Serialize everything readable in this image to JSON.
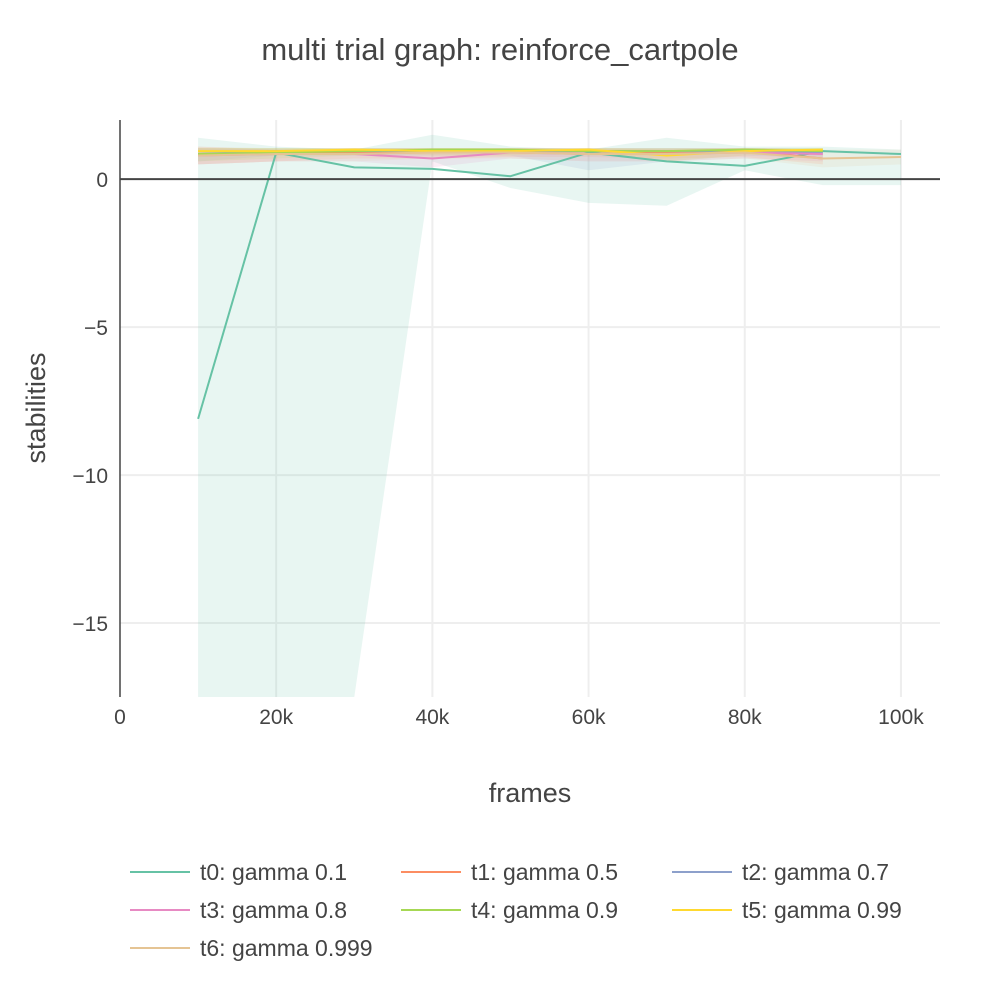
{
  "chart_data": {
    "type": "line",
    "title": "multi trial graph: reinforce_cartpole",
    "xlabel": "frames",
    "ylabel": "stabilities",
    "xlim": [
      0,
      105000
    ],
    "ylim": [
      -17.5,
      2
    ],
    "x_ticks": [
      {
        "value": 0,
        "label": "0"
      },
      {
        "value": 20000,
        "label": "20k"
      },
      {
        "value": 40000,
        "label": "40k"
      },
      {
        "value": 60000,
        "label": "60k"
      },
      {
        "value": 80000,
        "label": "80k"
      },
      {
        "value": 100000,
        "label": "100k"
      }
    ],
    "y_ticks": [
      {
        "value": 0,
        "label": "0"
      },
      {
        "value": -5,
        "label": "−5"
      },
      {
        "value": -10,
        "label": "−10"
      },
      {
        "value": -15,
        "label": "−15"
      }
    ],
    "grid": true,
    "legend_position": "bottom",
    "series": [
      {
        "name": "t0: gamma 0.1",
        "color": "#66c2a5",
        "x": [
          10000,
          20000,
          30000,
          40000,
          50000,
          60000,
          70000,
          80000,
          90000,
          100000
        ],
        "y": [
          -8.1,
          0.9,
          0.4,
          0.35,
          0.1,
          0.9,
          0.6,
          0.45,
          0.95,
          0.85
        ],
        "band_upper": [
          1.4,
          1.1,
          1.0,
          1.5,
          1.1,
          1.0,
          1.4,
          1.1,
          1.1,
          1.0
        ],
        "band_lower": [
          -17.5,
          -17.5,
          -17.5,
          0.6,
          -0.3,
          -0.8,
          -0.9,
          0.3,
          -0.2,
          -0.2
        ]
      },
      {
        "name": "t1: gamma 0.5",
        "color": "#fc8d62",
        "x": [
          10000,
          20000,
          30000,
          40000,
          50000,
          60000,
          70000,
          80000,
          90000
        ],
        "y": [
          0.85,
          0.85,
          0.9,
          0.9,
          0.95,
          0.95,
          0.9,
          0.95,
          0.7
        ],
        "band_upper": [
          1.1,
          1.0,
          1.05,
          1.05,
          1.05,
          1.05,
          1.05,
          1.05,
          1.0
        ],
        "band_lower": [
          0.5,
          0.6,
          0.7,
          0.7,
          0.75,
          0.75,
          0.7,
          0.75,
          0.5
        ]
      },
      {
        "name": "t2: gamma 0.7",
        "color": "#8da0cb",
        "x": [
          10000,
          20000,
          30000,
          40000,
          50000,
          60000,
          70000,
          80000,
          90000
        ],
        "y": [
          0.85,
          0.95,
          0.95,
          0.95,
          0.95,
          0.95,
          0.95,
          0.95,
          0.9
        ],
        "band_upper": [
          1.05,
          1.05,
          1.05,
          1.05,
          1.05,
          1.05,
          1.05,
          1.05,
          1.05
        ],
        "band_lower": [
          0.6,
          0.8,
          0.8,
          0.8,
          0.8,
          0.3,
          0.6,
          0.8,
          0.7
        ]
      },
      {
        "name": "t3: gamma 0.8",
        "color": "#e78ac3",
        "x": [
          10000,
          20000,
          30000,
          40000,
          50000,
          60000,
          70000,
          80000,
          90000
        ],
        "y": [
          0.8,
          0.85,
          0.85,
          0.7,
          0.9,
          0.85,
          0.85,
          0.9,
          0.85
        ],
        "band_upper": [
          1.05,
          1.0,
          1.0,
          1.0,
          1.05,
          1.0,
          1.0,
          1.05,
          1.0
        ],
        "band_lower": [
          0.5,
          0.6,
          0.6,
          0.4,
          0.7,
          0.6,
          0.6,
          0.7,
          0.6
        ]
      },
      {
        "name": "t4: gamma 0.9",
        "color": "#a6d854",
        "x": [
          10000,
          20000,
          30000,
          40000,
          50000,
          60000,
          70000,
          80000,
          90000
        ],
        "y": [
          0.85,
          0.9,
          0.95,
          1.0,
          1.0,
          0.95,
          0.95,
          1.0,
          0.95
        ],
        "band_upper": [
          1.05,
          1.05,
          1.05,
          1.05,
          1.05,
          1.05,
          1.05,
          1.05,
          1.05
        ],
        "band_lower": [
          0.6,
          0.7,
          0.8,
          0.9,
          0.9,
          0.8,
          0.8,
          0.9,
          0.8
        ]
      },
      {
        "name": "t5: gamma 0.99",
        "color": "#ffd92f",
        "x": [
          10000,
          20000,
          30000,
          40000,
          50000,
          60000,
          70000,
          80000,
          90000
        ],
        "y": [
          0.95,
          0.95,
          1.0,
          0.95,
          0.95,
          1.0,
          0.8,
          0.95,
          1.0
        ],
        "band_upper": [
          1.05,
          1.05,
          1.05,
          1.05,
          1.05,
          1.05,
          1.0,
          1.05,
          1.05
        ],
        "band_lower": [
          0.8,
          0.8,
          0.9,
          0.8,
          0.8,
          0.9,
          0.6,
          0.8,
          0.9
        ]
      },
      {
        "name": "t6: gamma 0.999",
        "color": "#e5c494",
        "x": [
          10000,
          20000,
          30000,
          40000,
          50000,
          60000,
          70000,
          80000,
          90000,
          100000
        ],
        "y": [
          0.8,
          0.85,
          0.85,
          0.9,
          0.9,
          0.85,
          0.85,
          0.9,
          0.7,
          0.75
        ],
        "band_upper": [
          1.1,
          1.05,
          1.05,
          1.05,
          1.05,
          1.05,
          1.05,
          1.05,
          1.0,
          1.0
        ],
        "band_lower": [
          0.5,
          0.6,
          0.6,
          0.7,
          0.7,
          0.6,
          0.6,
          0.7,
          0.4,
          0.5
        ]
      }
    ]
  }
}
